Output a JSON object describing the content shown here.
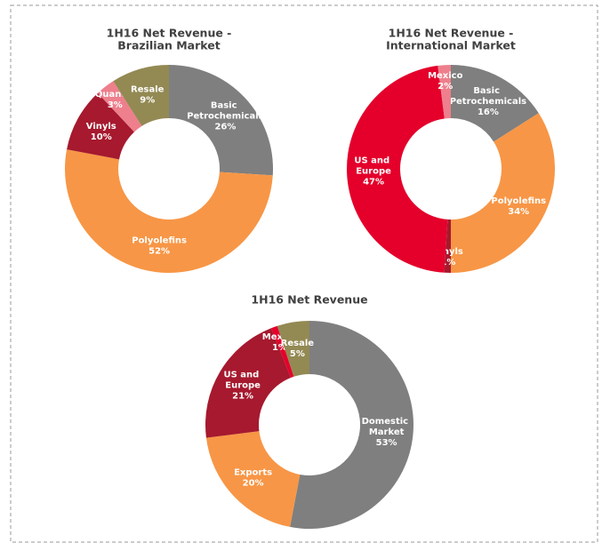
{
  "chart_data": [
    {
      "type": "donut",
      "title": [
        "1H16 Net Revenue -",
        "Brazilian Market"
      ],
      "categories": [
        "Basic Petrochemicals",
        "Polyolefins",
        "Vinyls",
        "Quantiq",
        "Resale"
      ],
      "values": [
        26,
        52,
        10,
        3,
        9
      ],
      "value_labels": [
        "26%",
        "52%",
        "10%",
        "3%",
        "9%"
      ],
      "colors": [
        "#7f7f7f",
        "#f79646",
        "#a6192e",
        "#ee7f8c",
        "#938953"
      ]
    },
    {
      "type": "donut",
      "title": [
        "1H16 Net Revenue -",
        "International Market"
      ],
      "categories": [
        "Basic Petrochemicals",
        "Polyolefins",
        "Vinyls",
        "US and Europe",
        "Mexico"
      ],
      "values": [
        16,
        34,
        1,
        47,
        2
      ],
      "value_labels": [
        "16%",
        "34%",
        "1%",
        "47%",
        "2%"
      ],
      "colors": [
        "#7f7f7f",
        "#f79646",
        "#a6192e",
        "#e4002b",
        "#ee7f8c"
      ]
    },
    {
      "type": "donut",
      "title": [
        "1H16 Net Revenue"
      ],
      "categories": [
        "Domestic Market",
        "Exports",
        "US and Europe",
        "Mexico",
        "Resale"
      ],
      "values": [
        53,
        20,
        21,
        1,
        5
      ],
      "value_labels": [
        "53%",
        "20%",
        "21%",
        "1%",
        "5%"
      ],
      "colors": [
        "#7f7f7f",
        "#f79646",
        "#a6192e",
        "#e4002b",
        "#938953"
      ]
    }
  ]
}
